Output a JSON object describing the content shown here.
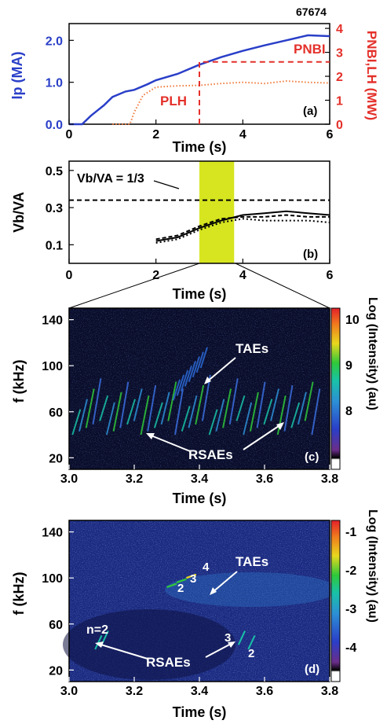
{
  "colors": {
    "ip": "#2a3fc8",
    "nbi": "#e4302a",
    "lh": "#f07a3a",
    "window": "#d6e51f"
  },
  "chart_data": [
    {
      "id": "a",
      "type": "line",
      "panel_label": "(a)",
      "shot": "67674",
      "xlabel": "Time (s)",
      "ylabel_left": "Ip (MA)",
      "ylabel_right": "PNBI,LH (MW)",
      "xlim": [
        0,
        6
      ],
      "ylim_left": [
        0,
        2.4
      ],
      "ylim_right": [
        0,
        4.2
      ],
      "x_ticks": [
        "0",
        "2",
        "4",
        "6"
      ],
      "y_ticks_left": [
        "0.0",
        "1.0",
        "2.0"
      ],
      "y_ticks_right": [
        "0",
        "1",
        "2",
        "3",
        "4"
      ],
      "annotations": [
        "PNBI",
        "PLH"
      ],
      "series": [
        {
          "name": "Ip",
          "axis": "left",
          "x": [
            0,
            0.3,
            0.5,
            0.8,
            1.0,
            1.3,
            1.5,
            1.8,
            2.0,
            2.5,
            3.0,
            3.5,
            4.0,
            4.5,
            5.0,
            5.5,
            6.0
          ],
          "y": [
            0,
            0,
            0.2,
            0.45,
            0.65,
            0.78,
            0.82,
            0.95,
            1.05,
            1.2,
            1.42,
            1.6,
            1.75,
            1.88,
            2.0,
            2.12,
            2.1
          ]
        },
        {
          "name": "PLH",
          "axis": "right",
          "x": [
            1.0,
            1.4,
            1.5,
            1.7,
            2.0,
            2.5,
            3.0,
            3.5,
            4.0,
            4.5,
            5.0,
            5.5,
            6.0
          ],
          "y": [
            0,
            0,
            0.5,
            1.2,
            1.55,
            1.6,
            1.62,
            1.7,
            1.75,
            1.7,
            1.8,
            1.75,
            1.72
          ]
        },
        {
          "name": "PNBI",
          "axis": "right",
          "x": [
            3.0,
            3.0,
            6.0
          ],
          "y": [
            0,
            2.6,
            2.6
          ]
        }
      ]
    },
    {
      "id": "b",
      "type": "line",
      "panel_label": "(b)",
      "xlabel": "Time (s)",
      "ylabel": "Vb/VA",
      "xlim": [
        0,
        6
      ],
      "ylim": [
        0,
        0.55
      ],
      "x_ticks": [
        "0",
        "2",
        "4",
        "6"
      ],
      "y_ticks": [
        "0.1",
        "0.3",
        "0.5"
      ],
      "reference_line": {
        "label": "Vb/VA = 1/3",
        "y": 0.34
      },
      "highlight_window": [
        3.0,
        3.8
      ],
      "series": [
        {
          "x": [
            2.0,
            2.5,
            3.0,
            3.5,
            4.0,
            4.5,
            5.0,
            5.5,
            6.0
          ],
          "y": [
            0.12,
            0.14,
            0.19,
            0.23,
            0.26,
            0.27,
            0.28,
            0.27,
            0.26
          ]
        },
        {
          "x": [
            2.0,
            2.5,
            3.0,
            3.5,
            4.0,
            4.5,
            5.0,
            5.5,
            6.0
          ],
          "y": [
            0.13,
            0.15,
            0.2,
            0.24,
            0.25,
            0.25,
            0.26,
            0.25,
            0.25
          ]
        },
        {
          "x": [
            2.0,
            2.5,
            3.0,
            3.5,
            4.0,
            4.5,
            5.0,
            5.5,
            6.0
          ],
          "y": [
            0.11,
            0.13,
            0.18,
            0.22,
            0.24,
            0.23,
            0.23,
            0.23,
            0.22
          ]
        }
      ]
    },
    {
      "id": "c",
      "type": "heatmap",
      "panel_label": "(c)",
      "xlabel": "Time (s)",
      "ylabel": "f (kHz)",
      "xlim": [
        3.0,
        3.8
      ],
      "ylim": [
        10,
        150
      ],
      "x_ticks": [
        "3.0",
        "3.2",
        "3.4",
        "3.6",
        "3.8"
      ],
      "y_ticks": [
        "20",
        "60",
        "100",
        "140"
      ],
      "colorbar_label": "Log (Intensity) (au)",
      "colorbar_ticks": [
        "10",
        "9",
        "8"
      ],
      "annotations": [
        "TAEs",
        "RSAEs"
      ]
    },
    {
      "id": "d",
      "type": "heatmap",
      "panel_label": "(d)",
      "xlabel": "Time (s)",
      "ylabel": "f (kHz)",
      "xlim": [
        3.0,
        3.8
      ],
      "ylim": [
        10,
        150
      ],
      "x_ticks": [
        "3.0",
        "3.2",
        "3.4",
        "3.6",
        "3.8"
      ],
      "y_ticks": [
        "20",
        "60",
        "100",
        "140"
      ],
      "colorbar_label": "Log (Intensity) (au)",
      "colorbar_ticks": [
        "-1",
        "-2",
        "-3",
        "-4"
      ],
      "annotations": [
        "TAEs",
        "RSAEs",
        "n=2",
        "2",
        "3",
        "4",
        "3",
        "2"
      ]
    }
  ]
}
